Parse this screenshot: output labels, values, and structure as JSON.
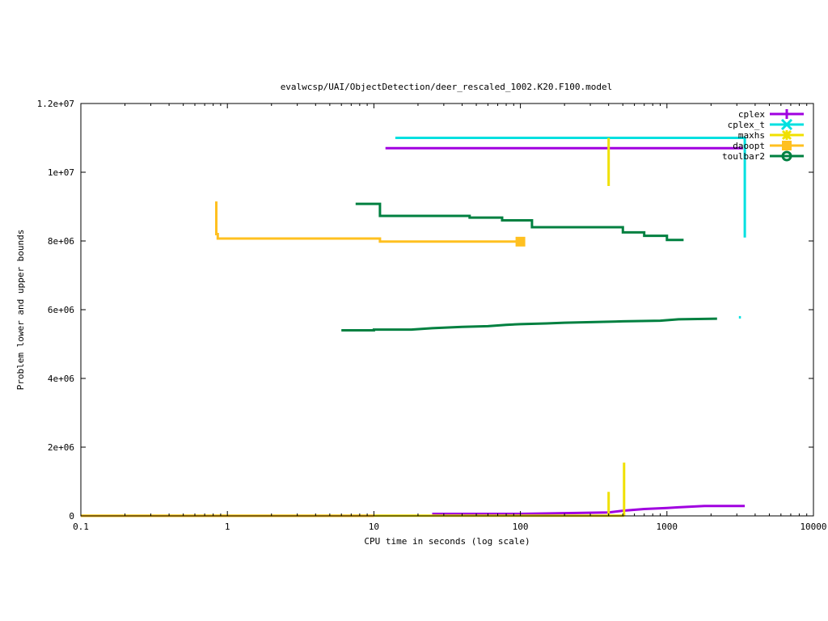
{
  "chart_data": {
    "type": "line",
    "title": "evalwcsp/UAI/ObjectDetection/deer_rescaled_1002.K20.F100.model",
    "xlabel": "CPU time in seconds (log scale)",
    "ylabel": "Problem lower and upper bounds",
    "x_scale": "log",
    "xlim": [
      0.1,
      10000
    ],
    "ylim": [
      0,
      12000000
    ],
    "x_ticks": [
      {
        "v": 0.1,
        "label": "0.1"
      },
      {
        "v": 1,
        "label": "1"
      },
      {
        "v": 10,
        "label": "10"
      },
      {
        "v": 100,
        "label": "100"
      },
      {
        "v": 1000,
        "label": "1000"
      },
      {
        "v": 10000,
        "label": "10000"
      }
    ],
    "y_ticks": [
      {
        "v": 0,
        "label": "0"
      },
      {
        "v": 2000000,
        "label": "2e+06"
      },
      {
        "v": 4000000,
        "label": "4e+06"
      },
      {
        "v": 6000000,
        "label": "6e+06"
      },
      {
        "v": 8000000,
        "label": "8e+06"
      },
      {
        "v": 10000000,
        "label": "1e+07"
      },
      {
        "v": 12000000,
        "label": "1.2e+07"
      }
    ],
    "grid": false,
    "legend_position": "top-right",
    "series": [
      {
        "name": "cplex",
        "color": "#a000e0",
        "marker": "plus",
        "segments": [
          [
            [
              12,
              10700000
            ],
            [
              3300,
              10700000
            ]
          ],
          [
            [
              25,
              60000
            ],
            [
              100,
              60000
            ],
            [
              200,
              80000
            ],
            [
              400,
              100000
            ],
            [
              500,
              150000
            ],
            [
              700,
              200000
            ],
            [
              1000,
              230000
            ],
            [
              1200,
              250000
            ],
            [
              1800,
              290000
            ],
            [
              3400,
              290000
            ]
          ]
        ]
      },
      {
        "name": "cplex_t",
        "color": "#00e0e0",
        "marker": "x",
        "segments": [
          [
            [
              14,
              11000000
            ],
            [
              3400,
              11000000
            ],
            [
              3400,
              8100000
            ]
          ],
          [
            [
              3100,
              5780000
            ],
            [
              3200,
              5780000
            ]
          ]
        ]
      },
      {
        "name": "maxhs",
        "color": "#f0e000",
        "marker": "star",
        "segments": [
          [
            [
              400,
              11000000
            ],
            [
              400,
              9600000
            ]
          ],
          [
            [
              400,
              700000
            ],
            [
              400,
              0
            ]
          ],
          [
            [
              510,
              1550000
            ],
            [
              510,
              0
            ]
          ],
          [
            [
              0.1,
              5000
            ],
            [
              510,
              5000
            ]
          ]
        ]
      },
      {
        "name": "daoopt",
        "color": "#ffc020",
        "marker": "square",
        "segments": [
          [
            [
              0.84,
              9150000
            ],
            [
              0.84,
              8200000
            ],
            [
              0.86,
              8200000
            ],
            [
              0.86,
              8070000
            ],
            [
              11,
              8070000
            ],
            [
              11,
              7980000
            ],
            [
              100,
              7980000
            ]
          ],
          [
            [
              0.1,
              0
            ],
            [
              10,
              0
            ]
          ]
        ],
        "end_point": [
          100,
          7980000
        ]
      },
      {
        "name": "toulbar2",
        "color": "#008040",
        "marker": "circle",
        "segments": [
          [
            [
              7.5,
              9080000
            ],
            [
              11,
              9080000
            ],
            [
              11,
              8730000
            ],
            [
              45,
              8730000
            ],
            [
              45,
              8680000
            ],
            [
              75,
              8680000
            ],
            [
              75,
              8600000
            ],
            [
              120,
              8600000
            ],
            [
              120,
              8520000
            ],
            [
              120,
              8400000
            ],
            [
              500,
              8400000
            ],
            [
              500,
              8250000
            ],
            [
              700,
              8250000
            ],
            [
              700,
              8150000
            ],
            [
              1000,
              8150000
            ],
            [
              1000,
              8030000
            ],
            [
              1300,
              8030000
            ]
          ],
          [
            [
              6,
              5400000
            ],
            [
              10,
              5400000
            ],
            [
              10,
              5420000
            ],
            [
              18,
              5420000
            ],
            [
              25,
              5460000
            ],
            [
              40,
              5500000
            ],
            [
              60,
              5520000
            ],
            [
              80,
              5560000
            ],
            [
              100,
              5580000
            ],
            [
              150,
              5600000
            ],
            [
              200,
              5620000
            ],
            [
              500,
              5660000
            ],
            [
              900,
              5680000
            ],
            [
              1200,
              5720000
            ],
            [
              2200,
              5740000
            ]
          ]
        ]
      }
    ]
  }
}
